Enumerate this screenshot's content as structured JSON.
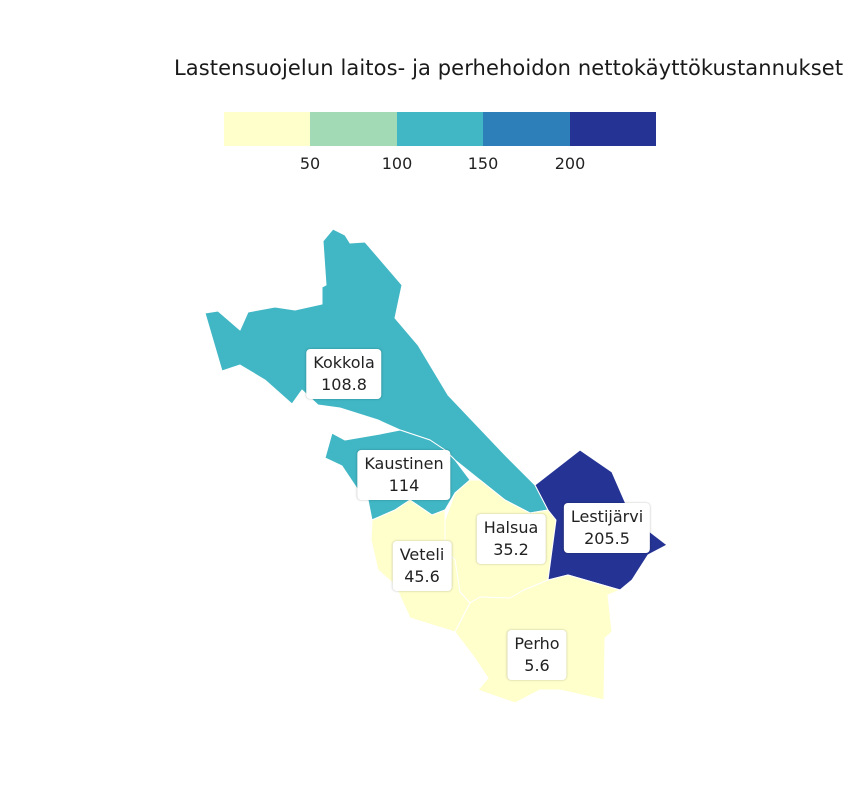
{
  "title": "Lastensuojelun laitos- ja perhehoidon nettokäyttökustannukset",
  "legend": {
    "colors": [
      "#ffffcc",
      "#a1dab4",
      "#41b6c4",
      "#2c7fb8",
      "#253494"
    ],
    "ticks": [
      "50",
      "100",
      "150",
      "200"
    ]
  },
  "regions": [
    {
      "name": "Kokkola",
      "value": "108.8",
      "color": "#41b6c4"
    },
    {
      "name": "Kaustinen",
      "value": "114",
      "color": "#41b6c4"
    },
    {
      "name": "Halsua",
      "value": "35.2",
      "color": "#ffffcc"
    },
    {
      "name": "Lestijärvi",
      "value": "205.5",
      "color": "#253494"
    },
    {
      "name": "Veteli",
      "value": "45.6",
      "color": "#ffffcc"
    },
    {
      "name": "Perho",
      "value": "5.6",
      "color": "#ffffcc"
    }
  ]
}
